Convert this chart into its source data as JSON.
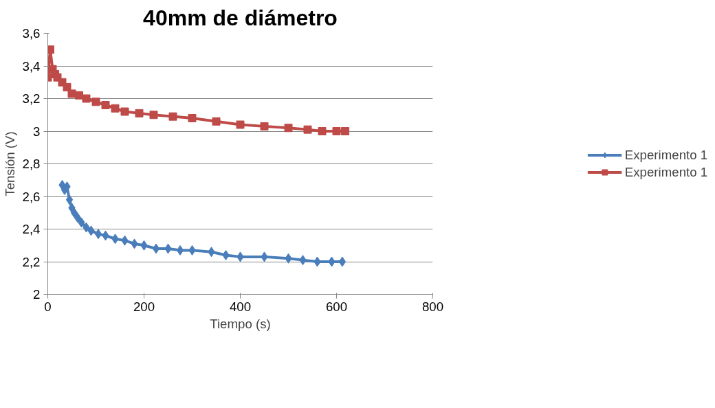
{
  "chart_data": {
    "type": "line",
    "title": "40mm de diámetro",
    "xlabel": "Tiempo (s)",
    "ylabel": "Tensión (V)",
    "xlim": [
      0,
      800
    ],
    "xticks": [
      0,
      200,
      400,
      600,
      800
    ],
    "ylim": [
      2,
      3.6
    ],
    "yticks": [
      {
        "value": 2,
        "label": "2"
      },
      {
        "value": 2.2,
        "label": "2,2"
      },
      {
        "value": 2.4,
        "label": "2,4"
      },
      {
        "value": 2.6,
        "label": "2,6"
      },
      {
        "value": 2.8,
        "label": "2,8"
      },
      {
        "value": 3,
        "label": "3"
      },
      {
        "value": 3.2,
        "label": "3,2"
      },
      {
        "value": 3.4,
        "label": "3,4"
      },
      {
        "value": 3.6,
        "label": "3,6"
      }
    ],
    "grid": "y",
    "legend": "right",
    "series": [
      {
        "name": "Experimento 1",
        "color": "#4a7ebb",
        "marker": "diamond",
        "x": [
          30,
          35,
          40,
          45,
          50,
          55,
          62,
          70,
          80,
          90,
          105,
          120,
          140,
          160,
          180,
          200,
          225,
          250,
          275,
          300,
          340,
          370,
          400,
          450,
          500,
          530,
          560,
          590,
          612
        ],
        "values": [
          2.67,
          2.64,
          2.66,
          2.58,
          2.53,
          2.5,
          2.47,
          2.44,
          2.41,
          2.39,
          2.37,
          2.36,
          2.34,
          2.33,
          2.31,
          2.3,
          2.28,
          2.28,
          2.27,
          2.27,
          2.26,
          2.24,
          2.23,
          2.23,
          2.22,
          2.21,
          2.2,
          2.2,
          2.2
        ]
      },
      {
        "name": "Experimento 1",
        "color": "#be4b48",
        "marker": "square",
        "x": [
          0,
          5,
          10,
          15,
          20,
          30,
          40,
          50,
          65,
          80,
          100,
          120,
          140,
          160,
          190,
          220,
          260,
          300,
          350,
          400,
          450,
          500,
          540,
          570,
          600,
          618
        ],
        "values": [
          3.33,
          3.5,
          3.38,
          3.35,
          3.33,
          3.3,
          3.27,
          3.23,
          3.22,
          3.2,
          3.18,
          3.16,
          3.14,
          3.12,
          3.11,
          3.1,
          3.09,
          3.08,
          3.06,
          3.04,
          3.03,
          3.02,
          3.01,
          3.0,
          3.0,
          3.0
        ]
      }
    ]
  }
}
